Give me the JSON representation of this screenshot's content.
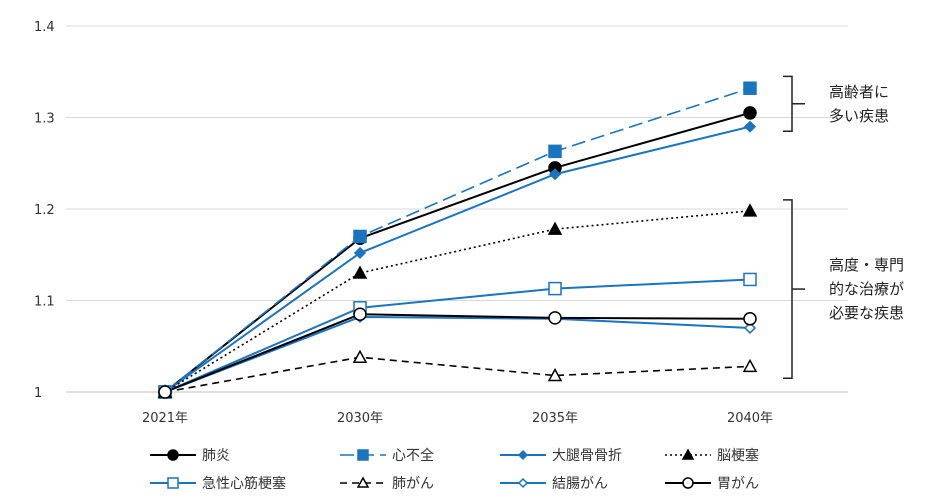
{
  "chart_data": {
    "type": "line",
    "categories": [
      "2021年",
      "2030年",
      "2035年",
      "2040年"
    ],
    "y_ticks": [
      "1",
      "1.1",
      "1.2",
      "1.3",
      "1.4"
    ],
    "ylim": [
      1.0,
      1.4
    ],
    "grid": true,
    "legend_position": "bottom",
    "series": [
      {
        "name": "肺炎",
        "values": [
          1.0,
          1.168,
          1.245,
          1.305
        ],
        "color": "#000000",
        "dash": "solid",
        "marker": "circle-filled"
      },
      {
        "name": "心不全",
        "values": [
          1.0,
          1.17,
          1.263,
          1.332
        ],
        "color": "#1a74bf",
        "dash": "long-dash",
        "marker": "square-filled"
      },
      {
        "name": "大腿骨骨折",
        "values": [
          1.0,
          1.152,
          1.238,
          1.29
        ],
        "color": "#1a74bf",
        "dash": "solid",
        "marker": "diamond-filled"
      },
      {
        "name": "脳梗塞",
        "values": [
          1.0,
          1.13,
          1.178,
          1.198
        ],
        "color": "#000000",
        "dash": "dotted",
        "marker": "triangle-filled"
      },
      {
        "name": "急性心筋梗塞",
        "values": [
          1.0,
          1.092,
          1.113,
          1.123
        ],
        "color": "#1a74bf",
        "dash": "solid",
        "marker": "square-open"
      },
      {
        "name": "肺がん",
        "values": [
          1.0,
          1.038,
          1.018,
          1.028
        ],
        "color": "#000000",
        "dash": "dashed",
        "marker": "triangle-open"
      },
      {
        "name": "結腸がん",
        "values": [
          1.0,
          1.082,
          1.08,
          1.07
        ],
        "color": "#1a74bf",
        "dash": "solid",
        "marker": "diamond-open"
      },
      {
        "name": "胃がん",
        "values": [
          1.0,
          1.085,
          1.081,
          1.08
        ],
        "color": "#000000",
        "dash": "solid",
        "marker": "circle-open"
      }
    ],
    "annotations": [
      {
        "lines": [
          "高齢者に",
          "多い疾患"
        ],
        "y_range": [
          1.285,
          1.345
        ]
      },
      {
        "lines": [
          "高度・専門",
          "的な治療が",
          "必要な疾患"
        ],
        "y_range": [
          1.015,
          1.21
        ]
      }
    ]
  }
}
